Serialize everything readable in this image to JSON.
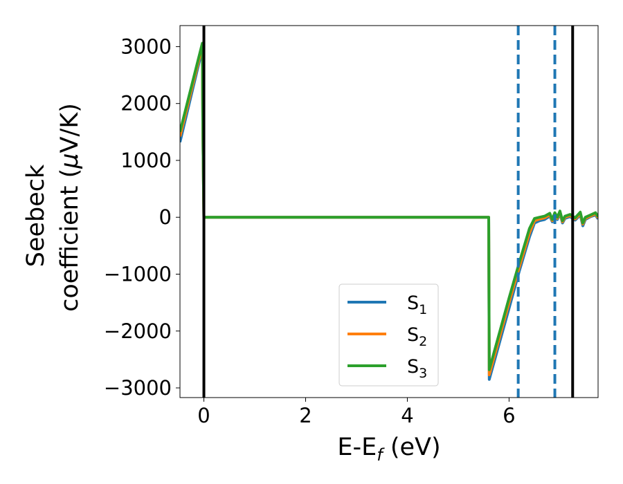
{
  "chart_data": {
    "type": "line",
    "xlabel": "E-E",
    "xlabel_sub": "f",
    "xlabel_unit": " (eV)",
    "ylabel_line1": "Seebeck",
    "ylabel_line2": "coefficient  (",
    "ylabel_mu": "μ",
    "ylabel_unit": "V/K)",
    "xlim": [
      -0.47,
      7.75
    ],
    "ylim": [
      -3170,
      3370
    ],
    "xticks": [
      0,
      2,
      4,
      6
    ],
    "xtick_labels": [
      "0",
      "2",
      "4",
      "6"
    ],
    "yticks": [
      -3000,
      -2000,
      -1000,
      0,
      1000,
      2000,
      3000
    ],
    "ytick_labels": [
      "−3000",
      "−2000",
      "−1000",
      "0",
      "1000",
      "2000",
      "3000"
    ],
    "grid": false,
    "legend_position": "lower-center",
    "vlines_solid": [
      0,
      7.25
    ],
    "vlines_dashed": [
      6.18,
      6.9
    ],
    "series": [
      {
        "name": "S",
        "sub": "1",
        "color": "#1f77b4",
        "x": [
          -0.47,
          -0.03,
          -0.02,
          0.0,
          5.6,
          5.61,
          6.0,
          6.2,
          6.4,
          6.5,
          6.6,
          6.7,
          6.8,
          6.85,
          6.9,
          6.95,
          7.0,
          7.05,
          7.1,
          7.2,
          7.3,
          7.4,
          7.45,
          7.5,
          7.6,
          7.7,
          7.75
        ],
        "y": [
          1320,
          2960,
          1500,
          0,
          0,
          -2850,
          -1600,
          -950,
          -350,
          -100,
          -60,
          -40,
          20,
          -80,
          30,
          -40,
          70,
          -100,
          -20,
          10,
          -50,
          40,
          -150,
          -40,
          10,
          40,
          -30
        ]
      },
      {
        "name": "S",
        "sub": "2",
        "color": "#ff7f0e",
        "x": [
          -0.47,
          -0.03,
          -0.02,
          0.0,
          5.6,
          5.61,
          6.0,
          6.2,
          6.4,
          6.5,
          6.6,
          6.7,
          6.8,
          6.85,
          6.9,
          6.95,
          7.0,
          7.05,
          7.1,
          7.2,
          7.3,
          7.4,
          7.45,
          7.5,
          7.6,
          7.7,
          7.75
        ],
        "y": [
          1420,
          3010,
          1500,
          0,
          0,
          -2770,
          -1500,
          -880,
          -280,
          -60,
          -30,
          -10,
          40,
          -60,
          50,
          -20,
          90,
          -80,
          0,
          30,
          -30,
          60,
          -120,
          -20,
          20,
          60,
          -10
        ]
      },
      {
        "name": "S",
        "sub": "3",
        "color": "#2ca02c",
        "x": [
          -0.47,
          -0.03,
          -0.02,
          0.0,
          5.6,
          5.61,
          6.0,
          6.2,
          6.4,
          6.5,
          6.6,
          6.7,
          6.8,
          6.85,
          6.9,
          6.95,
          7.0,
          7.05,
          7.1,
          7.2,
          7.3,
          7.4,
          7.45,
          7.5,
          7.6,
          7.7,
          7.75
        ],
        "y": [
          1500,
          3060,
          1500,
          0,
          0,
          -2680,
          -1420,
          -800,
          -200,
          -20,
          0,
          20,
          70,
          -40,
          80,
          0,
          110,
          -60,
          20,
          50,
          -10,
          90,
          -100,
          0,
          40,
          80,
          10
        ]
      }
    ]
  }
}
